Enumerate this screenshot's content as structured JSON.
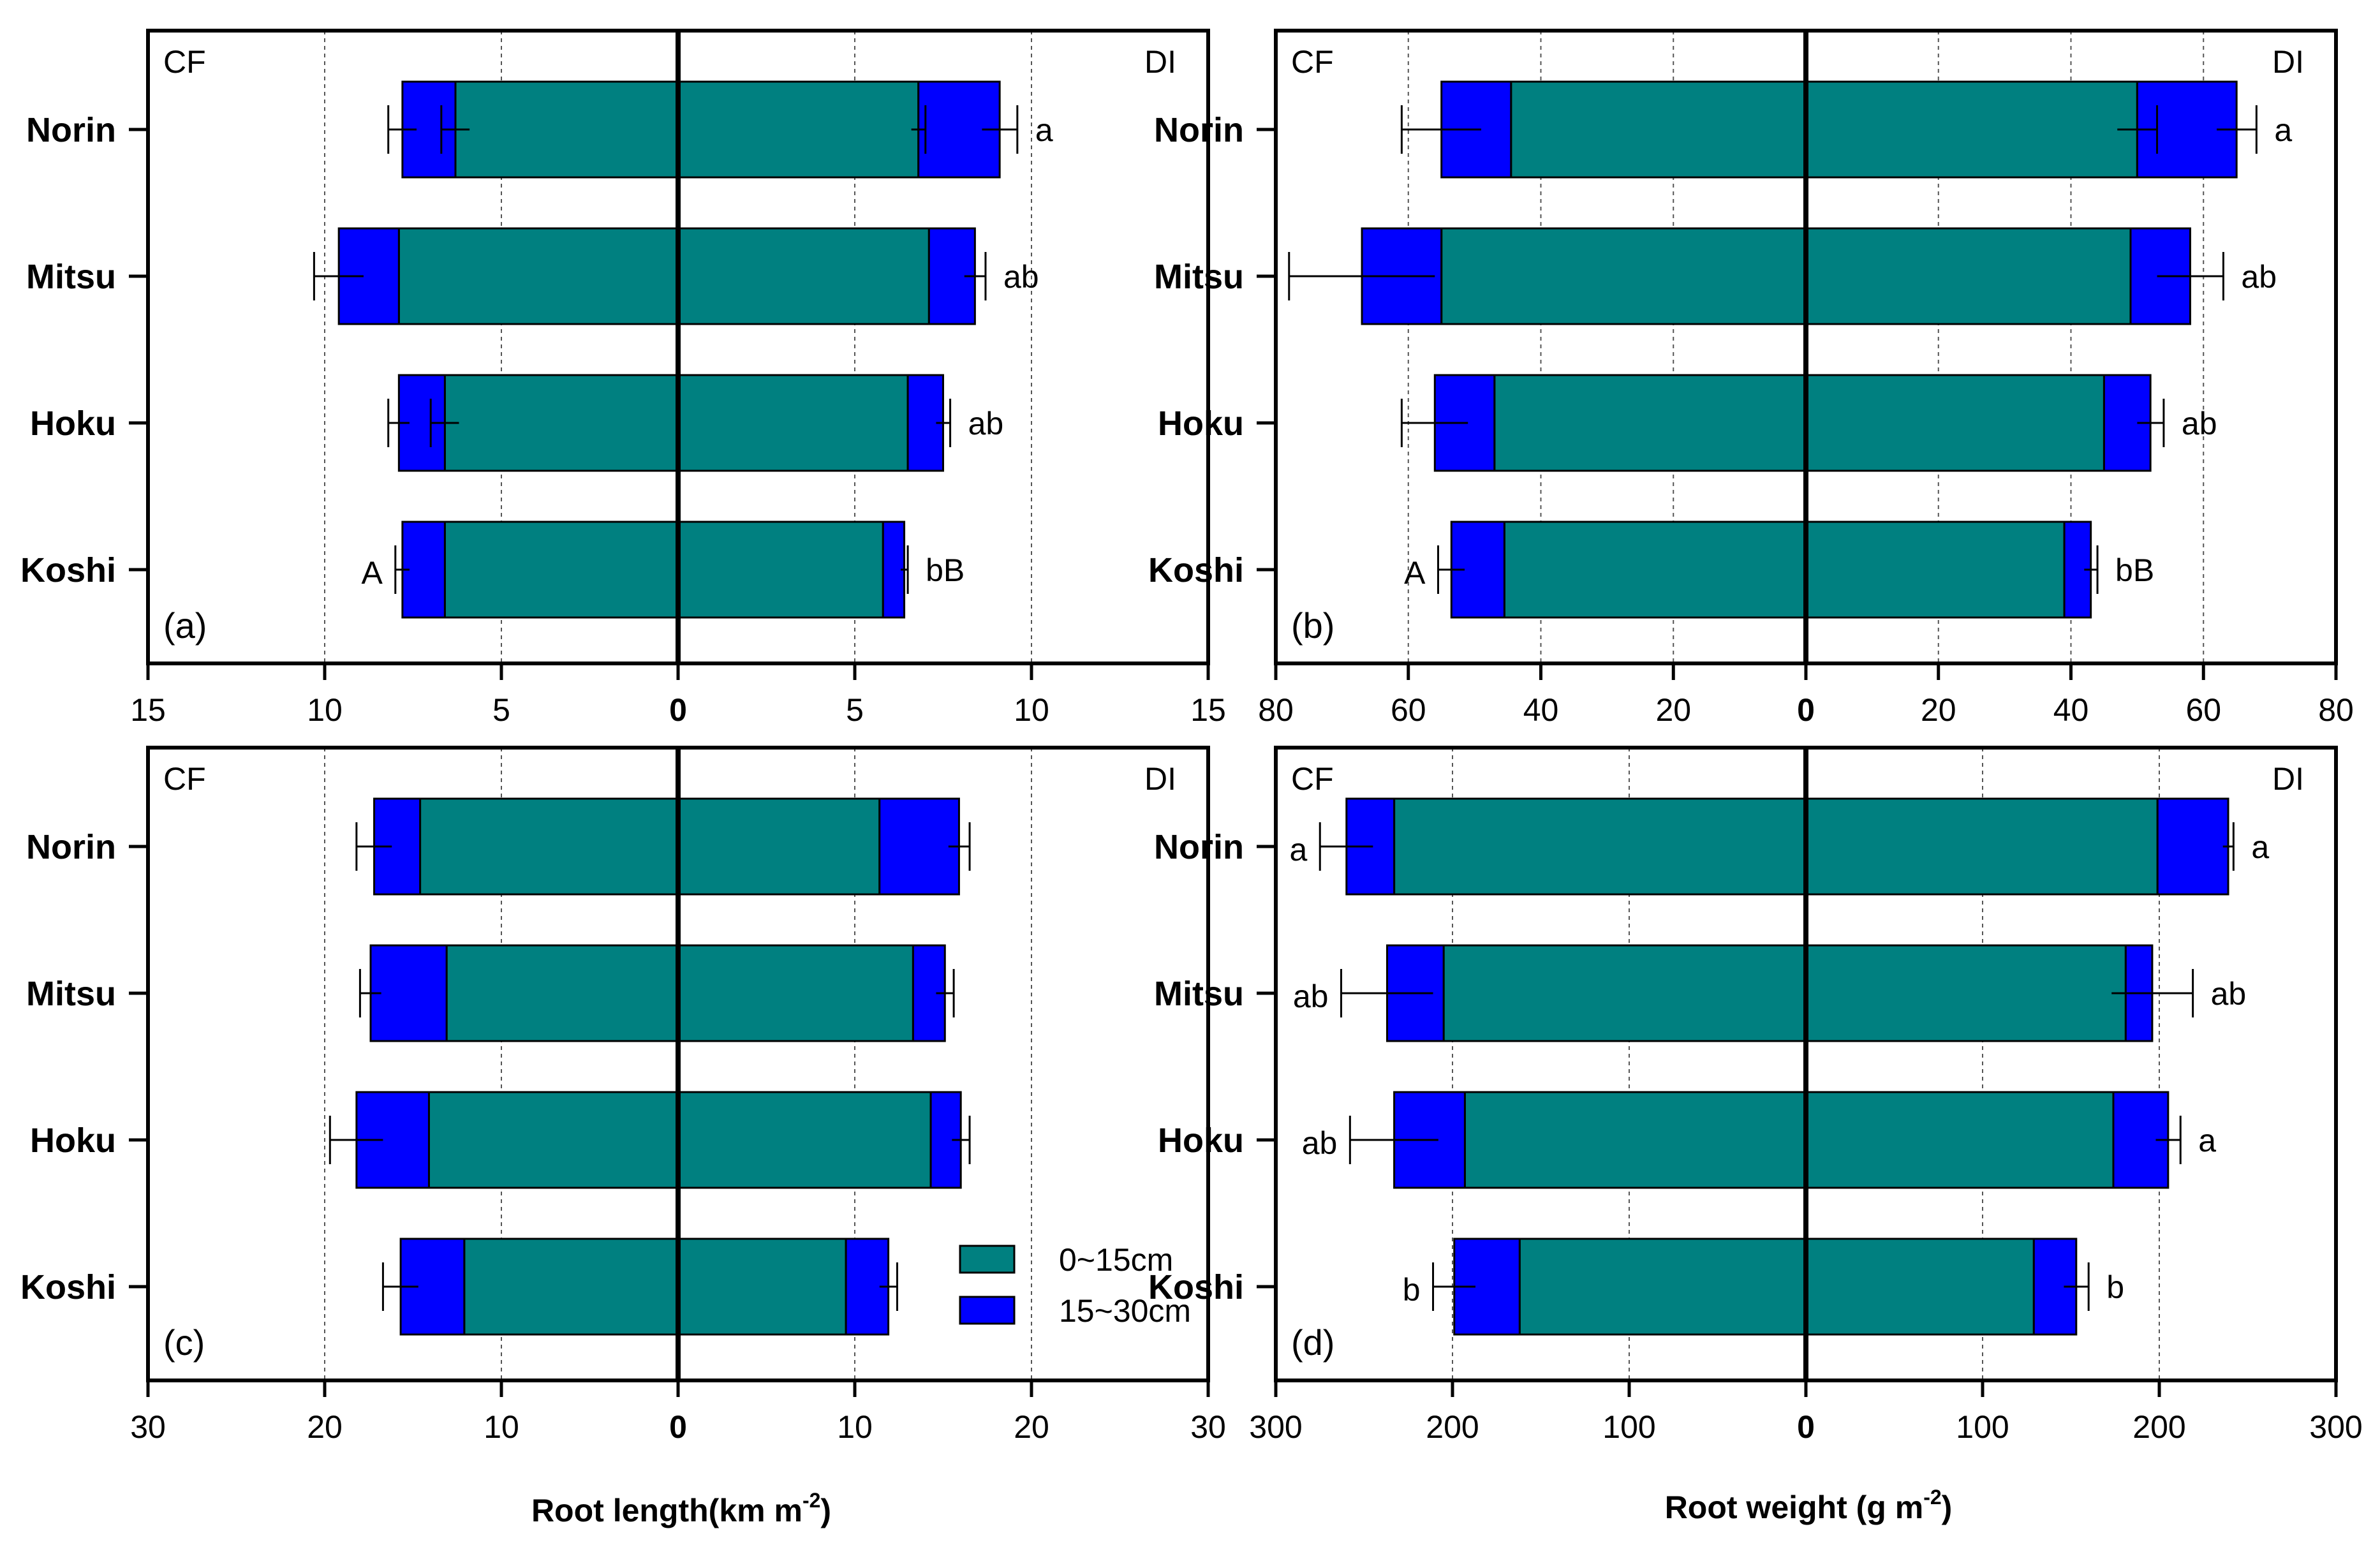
{
  "colors": {
    "layer1": "#008080",
    "layer2": "#0000FF",
    "stroke": "#000000",
    "grid": "#555555",
    "background": "#FFFFFF"
  },
  "chart_data": [
    {
      "id": "a",
      "type": "bar",
      "orientation": "horizontal-diverging",
      "panel_label": "(a)",
      "left_label": "CF",
      "right_label": "DI",
      "categories": [
        "Norin",
        "Mitsu",
        "Hoku",
        "Koshi"
      ],
      "xlim": [
        -15,
        15
      ],
      "ticks": [
        {
          "v": -15,
          "label": "15"
        },
        {
          "v": -10,
          "label": "10"
        },
        {
          "v": -5,
          "label": "5"
        },
        {
          "v": 0,
          "label": "0"
        },
        {
          "v": 5,
          "label": "5"
        },
        {
          "v": 10,
          "label": "10"
        },
        {
          "v": 15,
          "label": "15"
        }
      ],
      "gridlines": [
        -10,
        -5,
        5,
        10
      ],
      "series": [
        {
          "name": "0~15cm",
          "cf": [
            6.3,
            7.9,
            6.6,
            6.6
          ],
          "cf_err": [
            0.4,
            0.0,
            0.4,
            0.0
          ],
          "di": [
            6.8,
            7.1,
            6.5,
            5.8
          ],
          "di_err": [
            0.2,
            0.0,
            0.0,
            0.0
          ]
        },
        {
          "name": "15~30cm",
          "cf": [
            1.5,
            1.7,
            1.3,
            1.2
          ],
          "cf_err": [
            0.4,
            0.7,
            0.3,
            0.2
          ],
          "di": [
            2.3,
            1.3,
            1.0,
            0.6
          ],
          "di_err": [
            0.5,
            0.3,
            0.2,
            0.1
          ]
        }
      ],
      "cf_sig": [
        "",
        "",
        "",
        "A"
      ],
      "di_sig": [
        "a",
        "ab",
        "ab",
        "bB"
      ],
      "xlabel": ""
    },
    {
      "id": "b",
      "type": "bar",
      "orientation": "horizontal-diverging",
      "panel_label": "(b)",
      "left_label": "CF",
      "right_label": "DI",
      "categories": [
        "Norin",
        "Mitsu",
        "Hoku",
        "Koshi"
      ],
      "xlim": [
        -80,
        80
      ],
      "ticks": [
        {
          "v": -80,
          "label": "80"
        },
        {
          "v": -60,
          "label": "60"
        },
        {
          "v": -40,
          "label": "40"
        },
        {
          "v": -20,
          "label": "20"
        },
        {
          "v": 0,
          "label": "0"
        },
        {
          "v": 20,
          "label": "20"
        },
        {
          "v": 40,
          "label": "40"
        },
        {
          "v": 60,
          "label": "60"
        },
        {
          "v": 80,
          "label": "80"
        }
      ],
      "gridlines": [
        -60,
        -40,
        -20,
        20,
        40,
        60
      ],
      "series": [
        {
          "name": "0~15cm",
          "cf": [
            44.5,
            55.0,
            47.0,
            45.5
          ],
          "cf_err": [
            0.0,
            0.0,
            0.0,
            0.0
          ],
          "di": [
            50.0,
            49.0,
            45.0,
            39.0
          ],
          "di_err": [
            3.0,
            0.0,
            0.0,
            0.0
          ]
        },
        {
          "name": "15~30cm",
          "cf": [
            10.5,
            12.0,
            9.0,
            8.0
          ],
          "cf_err": [
            6.0,
            11.0,
            5.0,
            2.0
          ],
          "di": [
            15.0,
            9.0,
            7.0,
            4.0
          ],
          "di_err": [
            3.0,
            5.0,
            2.0,
            1.0
          ]
        }
      ],
      "cf_sig": [
        "",
        "",
        "",
        "A"
      ],
      "di_sig": [
        "a",
        "ab",
        "ab",
        "bB"
      ],
      "xlabel": ""
    },
    {
      "id": "c",
      "type": "bar",
      "orientation": "horizontal-diverging",
      "panel_label": "(c)",
      "left_label": "CF",
      "right_label": "DI",
      "categories": [
        "Norin",
        "Mitsu",
        "Hoku",
        "Koshi"
      ],
      "xlim": [
        -30,
        30
      ],
      "ticks": [
        {
          "v": -30,
          "label": "30"
        },
        {
          "v": -20,
          "label": "20"
        },
        {
          "v": -10,
          "label": "10"
        },
        {
          "v": 0,
          "label": "0"
        },
        {
          "v": 10,
          "label": "10"
        },
        {
          "v": 20,
          "label": "20"
        },
        {
          "v": 30,
          "label": "30"
        }
      ],
      "gridlines": [
        -20,
        -10,
        10,
        20
      ],
      "series": [
        {
          "name": "0~15cm",
          "cf": [
            14.6,
            13.1,
            14.1,
            12.1
          ],
          "cf_err": [
            0.0,
            0.0,
            0.0,
            0.0
          ],
          "di": [
            11.4,
            13.3,
            14.3,
            9.5
          ],
          "di_err": [
            0.0,
            0.0,
            0.0,
            0.0
          ]
        },
        {
          "name": "15~30cm",
          "cf": [
            2.6,
            4.3,
            4.1,
            3.6
          ],
          "cf_err": [
            1.0,
            0.6,
            1.5,
            1.0
          ],
          "di": [
            4.5,
            1.8,
            1.7,
            2.4
          ],
          "di_err": [
            0.6,
            0.5,
            0.5,
            0.5
          ]
        }
      ],
      "cf_sig": [
        "",
        "",
        "",
        ""
      ],
      "di_sig": [
        "",
        "",
        "",
        ""
      ],
      "xlabel": "Root length(km m",
      "xlabel_sup": "-2",
      "xlabel_end": ")"
    },
    {
      "id": "d",
      "type": "bar",
      "orientation": "horizontal-diverging",
      "panel_label": "(d)",
      "left_label": "CF",
      "right_label": "DI",
      "categories": [
        "Norin",
        "Mitsu",
        "Hoku",
        "Koshi"
      ],
      "xlim": [
        -300,
        300
      ],
      "ticks": [
        {
          "v": -300,
          "label": "300"
        },
        {
          "v": -200,
          "label": "200"
        },
        {
          "v": -100,
          "label": "100"
        },
        {
          "v": 0,
          "label": "0"
        },
        {
          "v": 100,
          "label": "100"
        },
        {
          "v": 200,
          "label": "200"
        },
        {
          "v": 300,
          "label": "300"
        }
      ],
      "gridlines": [
        -200,
        -100,
        100,
        200
      ],
      "series": [
        {
          "name": "0~15cm",
          "cf": [
            233.0,
            205.0,
            193.0,
            162.0
          ],
          "cf_err": [
            0.0,
            0.0,
            0.0,
            0.0
          ],
          "di": [
            199.0,
            181.0,
            174.0,
            129.0
          ],
          "di_err": [
            0.0,
            0.0,
            0.0,
            0.0
          ]
        },
        {
          "name": "15~30cm",
          "cf": [
            27.0,
            32.0,
            40.0,
            37.0
          ],
          "cf_err": [
            15.0,
            26.0,
            25.0,
            12.0
          ],
          "di": [
            40.0,
            15.0,
            31.0,
            24.0
          ],
          "di_err": [
            3.0,
            23.0,
            7.0,
            7.0
          ]
        }
      ],
      "cf_sig": [
        "a",
        "ab",
        "ab",
        "b"
      ],
      "di_sig": [
        "a",
        "ab",
        "a",
        "b"
      ],
      "xlabel": "Root weight (g m",
      "xlabel_sup": "-2",
      "xlabel_end": ")"
    }
  ],
  "legend": {
    "items": [
      {
        "label": "0~15cm",
        "series": 0
      },
      {
        "label": "15~30cm",
        "series": 1
      }
    ],
    "position": "lower-right of panel c"
  }
}
